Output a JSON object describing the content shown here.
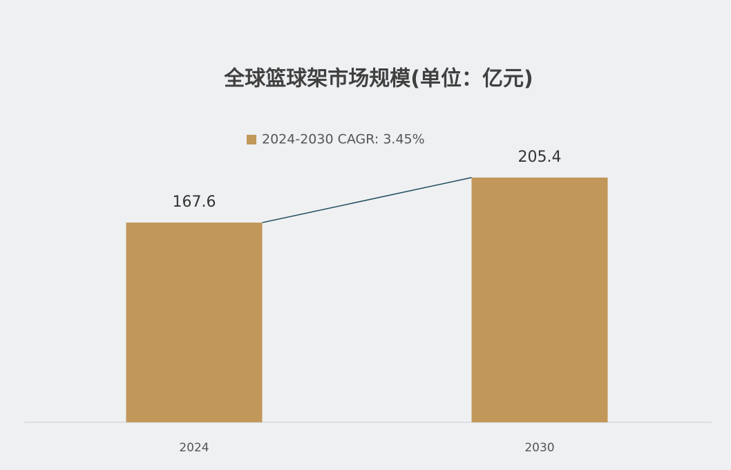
{
  "chart_data": {
    "type": "bar",
    "title": "全球篮球架市场规模(单位：亿元)",
    "categories": [
      "2024",
      "2030"
    ],
    "series": [
      {
        "name": "2024-2030 CAGR: 3.45%",
        "color": "#c1975a",
        "values": [
          167.6,
          205.4
        ]
      }
    ],
    "line_color": "#1f4b5c",
    "ylim": [
      0,
      250
    ]
  }
}
